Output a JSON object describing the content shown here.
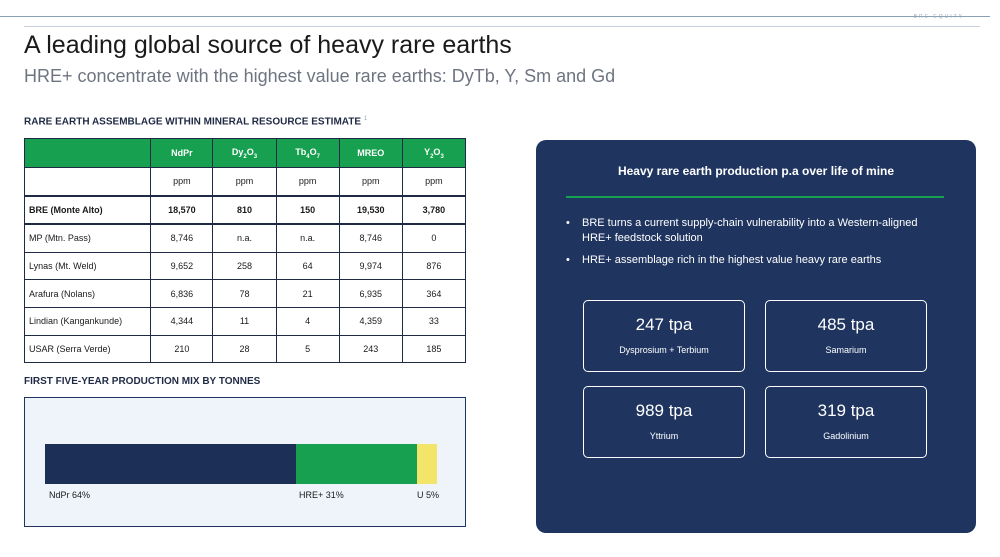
{
  "brand": "BRE EQUITY",
  "header": {
    "title": "A leading global source of heavy rare earths",
    "subtitle": "HRE+ concentrate with the highest value rare earths: DyTb, Y, Sm and Gd"
  },
  "assemblage": {
    "heading": "RARE EARTH ASSEMBLAGE  WITHIN MINERAL RESOURCE ESTIMATE",
    "footnote": "1",
    "columns": [
      "NdPr",
      "Dy2O3",
      "Tb4O7",
      "MREO",
      "Y2O3"
    ],
    "unit_row": [
      "ppm",
      "ppm",
      "ppm",
      "ppm",
      "ppm"
    ],
    "rows": [
      {
        "name": "BRE (Monte Alto)",
        "values": [
          "18,570",
          "810",
          "150",
          "19,530",
          "3,780"
        ]
      },
      {
        "name": "MP (Mtn. Pass)",
        "values": [
          "8,746",
          "n.a.",
          "n.a.",
          "8,746",
          "0"
        ]
      },
      {
        "name": "Lynas (Mt. Weld)",
        "values": [
          "9,652",
          "258",
          "64",
          "9,974",
          "876"
        ]
      },
      {
        "name": "Arafura (Nolans)",
        "values": [
          "6,836",
          "78",
          "21",
          "6,935",
          "364"
        ]
      },
      {
        "name": "Lindian (Kangankunde)",
        "values": [
          "4,344",
          "11",
          "4",
          "4,359",
          "33"
        ]
      },
      {
        "name": "USAR (Serra Verde)",
        "values": [
          "210",
          "28",
          "5",
          "243",
          "185"
        ]
      }
    ]
  },
  "mix": {
    "heading": "FIRST FIVE-YEAR PRODUCTION MIX BY TONNES",
    "segments": [
      {
        "label": "NdPr 64%",
        "share": 64,
        "color": "#1c3057"
      },
      {
        "label": "HRE+ 31%",
        "share": 31,
        "color": "#17a04f"
      },
      {
        "label": "U 5%",
        "share": 5,
        "color": "#f3e46a"
      }
    ]
  },
  "panel": {
    "title": "Heavy rare earth production p.a over life of mine",
    "bullets": [
      "BRE turns a current supply-chain vulnerability into a Western-aligned HRE+ feedstock solution",
      "HRE+ assemblage rich in the highest value heavy rare earths"
    ],
    "stats": [
      {
        "value": "247 tpa",
        "label": "Dysprosium + Terbium"
      },
      {
        "value": "485 tpa",
        "label": "Samarium"
      },
      {
        "value": "989 tpa",
        "label": "Yttrium"
      },
      {
        "value": "319 tpa",
        "label": "Gadolinium"
      }
    ]
  },
  "colors": {
    "navy": "#1f3560",
    "green": "#17a04f",
    "yellow": "#f3e46a"
  }
}
